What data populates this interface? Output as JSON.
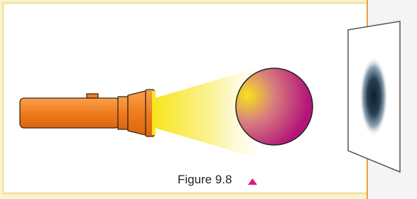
{
  "caption": {
    "text": "Figure 9.8"
  }
}
